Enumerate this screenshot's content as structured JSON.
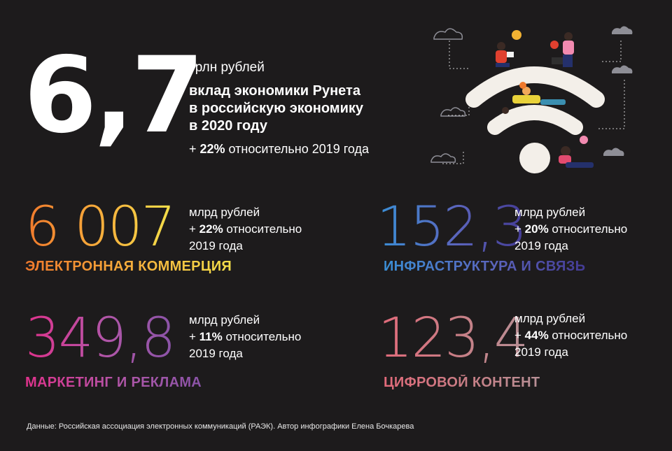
{
  "hero": {
    "value": "6,7",
    "unit": "трлн рублей",
    "description_lines": [
      "вклад экономики Рунета",
      "в российскую экономику",
      "в 2020 году"
    ],
    "growth_prefix": "+ ",
    "growth_pct": "22%",
    "growth_suffix": " относительно 2019 года"
  },
  "metrics": [
    {
      "value": "6 007",
      "unit": "млрд рублей",
      "growth_prefix": "+ ",
      "growth_pct": "22%",
      "growth_suffix": " относительно",
      "growth_year": "2019 года",
      "label": "ЭЛЕКТРОННАЯ КОММЕРЦИЯ"
    },
    {
      "value": "152,3",
      "unit": "млрд рублей",
      "growth_prefix": "+ ",
      "growth_pct": "20%",
      "growth_suffix": " относительно",
      "growth_year": "2019 года",
      "label": "ИНФРАСТРУКТУРА И СВЯЗЬ"
    },
    {
      "value": "349,8",
      "unit": "млрд рублей",
      "growth_prefix": "+ ",
      "growth_pct": "11%",
      "growth_suffix": " относительно",
      "growth_year": "2019 года",
      "label": "МАРКЕТИНГ И РЕКЛАМА"
    },
    {
      "value": "123,4",
      "unit": "млрд рублей",
      "growth_prefix": "+ ",
      "growth_pct": "44%",
      "growth_suffix": " относительно",
      "growth_year": "2019 года",
      "label": "ЦИФРОВОЙ КОНТЕНТ"
    }
  ],
  "source": "Данные: Российская ассоциация электронных коммуникаций (РАЭК). Автор инфографики Елена Бочкарева",
  "illustration": {
    "icon": "wifi-people-illustration",
    "colors": {
      "background": "#1d1b1c",
      "wifi_arcs": "#f3efe9",
      "clouds": "#8e8e96"
    }
  }
}
